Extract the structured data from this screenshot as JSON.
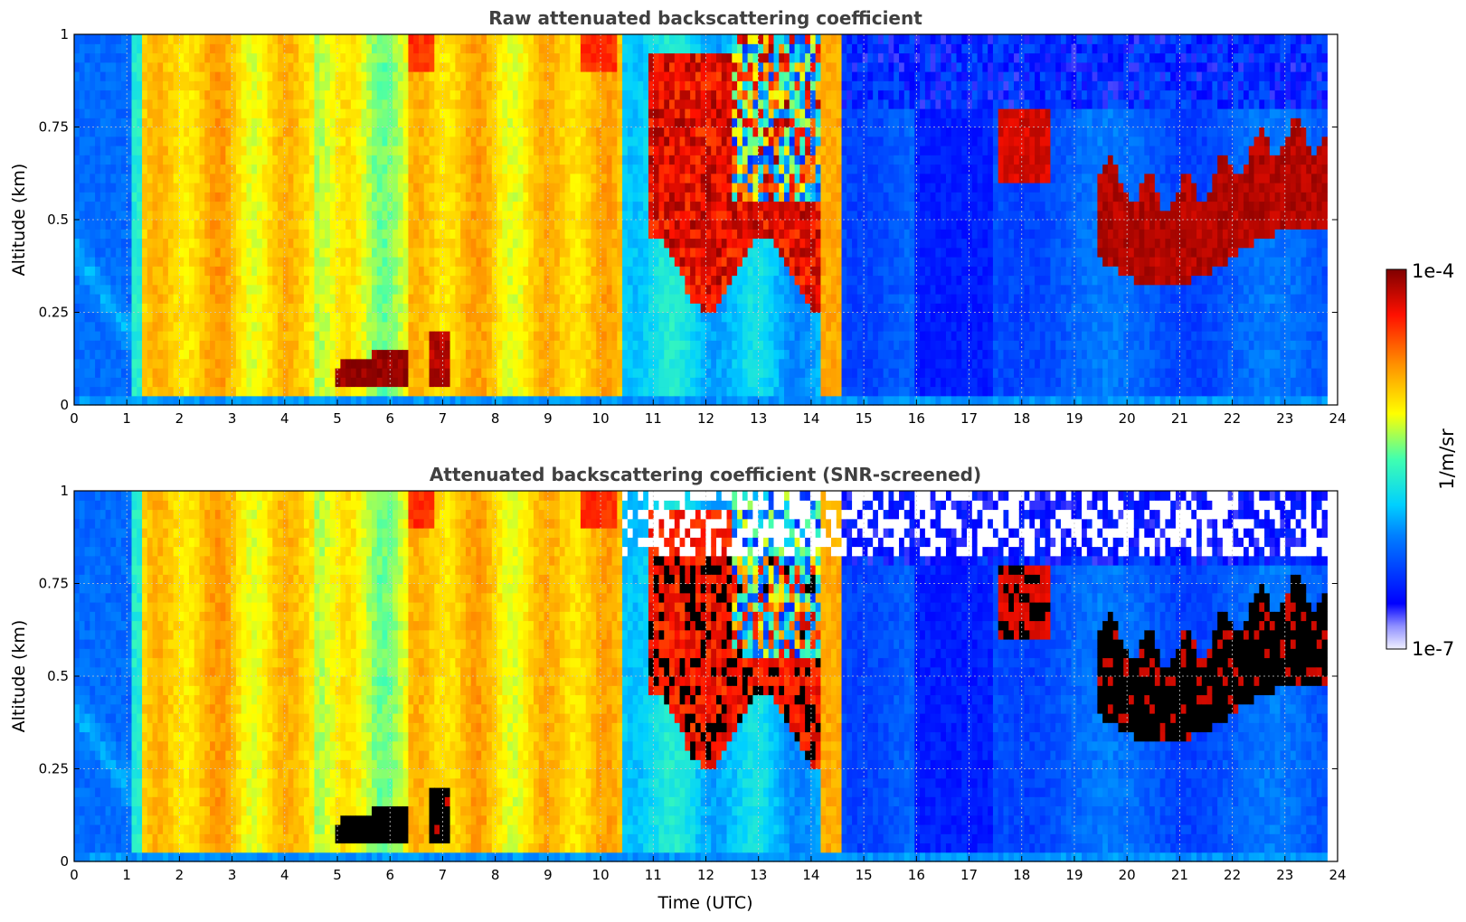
{
  "chart_data": [
    {
      "type": "heatmap",
      "title": "Raw attenuated backscattering coefficient",
      "xlabel": "",
      "ylabel": "Altitude (km)",
      "xlim": [
        0,
        24
      ],
      "ylim": [
        0,
        1
      ],
      "x_ticks": [
        "0",
        "1",
        "2",
        "3",
        "4",
        "5",
        "6",
        "7",
        "8",
        "9",
        "10",
        "11",
        "12",
        "13",
        "14",
        "15",
        "16",
        "17",
        "18",
        "19",
        "20",
        "21",
        "22",
        "23",
        "24"
      ],
      "y_ticks": [
        "0",
        "0.25",
        "0.5",
        "0.75",
        "1"
      ],
      "grid": true,
      "screened": false
    },
    {
      "type": "heatmap",
      "title": "Attenuated backscattering coefficient (SNR-screened)",
      "xlabel": "Time (UTC)",
      "ylabel": "Altitude (km)",
      "xlim": [
        0,
        24
      ],
      "ylim": [
        0,
        1
      ],
      "x_ticks": [
        "0",
        "1",
        "2",
        "3",
        "4",
        "5",
        "6",
        "7",
        "8",
        "9",
        "10",
        "11",
        "12",
        "13",
        "14",
        "15",
        "16",
        "17",
        "18",
        "19",
        "20",
        "21",
        "22",
        "23",
        "24"
      ],
      "y_ticks": [
        "0",
        "0.25",
        "0.5",
        "0.75",
        "1"
      ],
      "grid": true,
      "screened": true
    }
  ],
  "colorbar": {
    "label": "1/m/sr",
    "max_label": "1e-4",
    "min_label": "1e-7",
    "scale": "log",
    "range": [
      1e-07,
      0.0001
    ]
  }
}
